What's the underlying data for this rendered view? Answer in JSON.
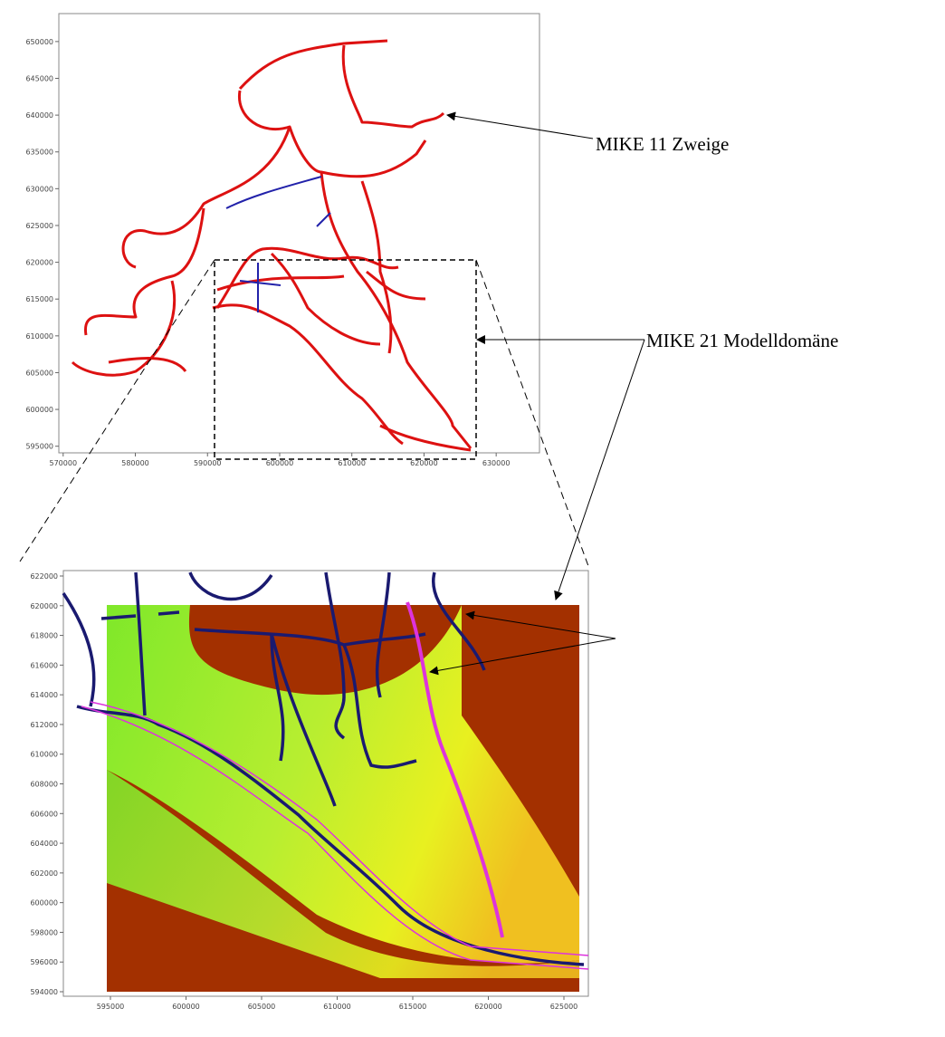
{
  "maps": [
    {
      "xlim": [
        569400,
        636000
      ],
      "ylim": [
        594100,
        653800
      ],
      "xticks": [
        570000,
        580000,
        590000,
        600000,
        610000,
        620000,
        630000
      ],
      "yticks": [
        595000,
        600000,
        605000,
        610000,
        615000,
        620000,
        625000,
        630000,
        635000,
        640000,
        645000,
        650000
      ]
    },
    {
      "xlim": [
        591886,
        626617
      ],
      "ylim": [
        593695,
        622366
      ],
      "xticks": [
        595000,
        600000,
        605000,
        610000,
        615000,
        620000,
        625000
      ],
      "yticks": [
        594000,
        596000,
        598000,
        600000,
        602000,
        604000,
        606000,
        608000,
        610000,
        612000,
        614000,
        616000,
        618000,
        620000,
        622000
      ]
    }
  ],
  "annotations": {
    "branches": "MIKE 11 Zweige",
    "domain": "MIKE 21 Modelldomäne"
  }
}
